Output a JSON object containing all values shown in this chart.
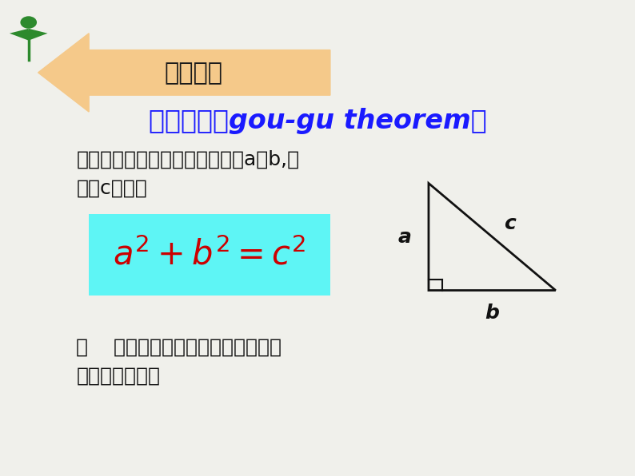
{
  "bg_color": "#f0f0eb",
  "arrow_color": "#f5c98a",
  "arrow_text": "知识回味",
  "title_text": "勾股定理（gou-gu theorem）",
  "title_color": "#1a1aff",
  "body_text1": "如果直角三角形两直角边分别为a、b,斜",
  "body_text2": "边为c，那么",
  "formula_bg": "#5ef5f5",
  "formula_color": "#cc0000",
  "bottom_text1": "即    直角三角形两直角边的平方和等",
  "bottom_text2": "于斜边的平方。",
  "triangle_color": "#111111",
  "label_a": "a",
  "label_b": "b",
  "label_c": "c",
  "plant_color": "#2d8a2d"
}
